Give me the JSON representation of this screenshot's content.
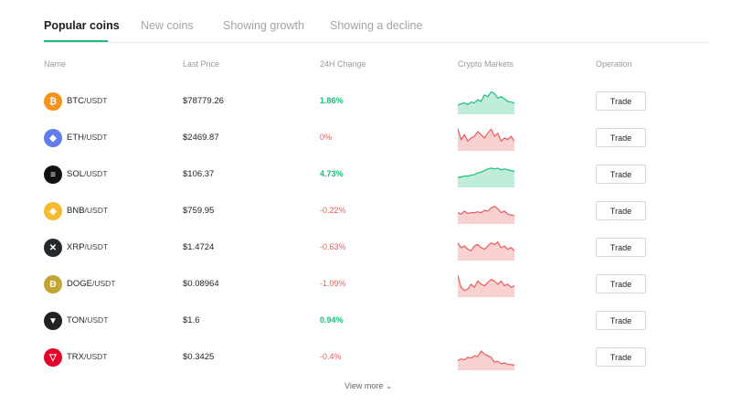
{
  "tabs": [
    {
      "label": "Popular coins",
      "active": true
    },
    {
      "label": "New coins",
      "active": false
    },
    {
      "label": "Showing growth",
      "active": false
    },
    {
      "label": "Showing a decline",
      "active": false
    }
  ],
  "columns": {
    "name": "Name",
    "last_price": "Last Price",
    "change_24h": "24H Change",
    "crypto_markets": "Crypto Markets",
    "operation": "Operation"
  },
  "trade_label": "Trade",
  "view_more": "View more",
  "colors": {
    "accent": "#1bbf79",
    "up": "#1bbf79",
    "down": "#ee5a5a"
  },
  "coins": [
    {
      "symbol": "BTC",
      "quote": "/USDT",
      "price": "$78779.26",
      "change": "1.86%",
      "direction": "up",
      "icon": "bitcoin-icon",
      "icon_color": "#f7931a",
      "icon_glyph": "₿",
      "spark": [
        9,
        11,
        12,
        10,
        13,
        12,
        16,
        14,
        22,
        20,
        26,
        24,
        18,
        20,
        17,
        14,
        13,
        12
      ]
    },
    {
      "symbol": "ETH",
      "quote": "/USDT",
      "price": "$2469.87",
      "change": "0%",
      "direction": "down",
      "icon": "ethereum-icon",
      "icon_color": "#627eea",
      "icon_glyph": "◆",
      "spark": [
        26,
        12,
        18,
        10,
        14,
        16,
        22,
        18,
        14,
        20,
        25,
        16,
        20,
        10,
        14,
        12,
        16,
        10
      ]
    },
    {
      "symbol": "SOL",
      "quote": "/USDT",
      "price": "$106.37",
      "change": "4.73%",
      "direction": "up",
      "icon": "solana-icon",
      "icon_color": "#111111",
      "icon_glyph": "≡",
      "spark": [
        10,
        11,
        12,
        12,
        13,
        14,
        16,
        17,
        19,
        21,
        22,
        21,
        22,
        20,
        21,
        20,
        19,
        18
      ]
    },
    {
      "symbol": "BNB",
      "quote": "/USDT",
      "price": "$759.95",
      "change": "-0.22%",
      "direction": "down",
      "icon": "bnb-icon",
      "icon_color": "#f3ba2f",
      "icon_glyph": "◈",
      "spark": [
        12,
        10,
        14,
        11,
        12,
        12,
        13,
        12,
        15,
        14,
        18,
        20,
        17,
        12,
        14,
        10,
        9,
        8
      ]
    },
    {
      "symbol": "XRP",
      "quote": "/USDT",
      "price": "$1.4724",
      "change": "-0.63%",
      "direction": "down",
      "icon": "xrp-icon",
      "icon_color": "#23292f",
      "icon_glyph": "✕",
      "spark": [
        20,
        14,
        16,
        12,
        10,
        16,
        18,
        14,
        12,
        16,
        20,
        18,
        21,
        14,
        16,
        12,
        14,
        10
      ]
    },
    {
      "symbol": "DOGE",
      "quote": "/USDT",
      "price": "$0.08964",
      "change": "-1.09%",
      "direction": "down",
      "icon": "dogecoin-icon",
      "icon_color": "#c2a633",
      "icon_glyph": "Ð",
      "spark": [
        25,
        10,
        6,
        8,
        14,
        10,
        18,
        14,
        12,
        16,
        20,
        18,
        14,
        18,
        12,
        14,
        10,
        12
      ]
    },
    {
      "symbol": "TON",
      "quote": "/USDT",
      "price": "$1.6",
      "change": "0.94%",
      "direction": "up",
      "icon": "ton-icon",
      "icon_color": "#222222",
      "icon_glyph": "▼",
      "spark": []
    },
    {
      "symbol": "TRX",
      "quote": "/USDT",
      "price": "$0.3425",
      "change": "-0.4%",
      "direction": "down",
      "icon": "tron-icon",
      "icon_color": "#e5002b",
      "icon_glyph": "▽",
      "spark": [
        10,
        12,
        11,
        14,
        13,
        16,
        15,
        22,
        18,
        16,
        14,
        8,
        9,
        6,
        7,
        5,
        5,
        4
      ]
    }
  ]
}
